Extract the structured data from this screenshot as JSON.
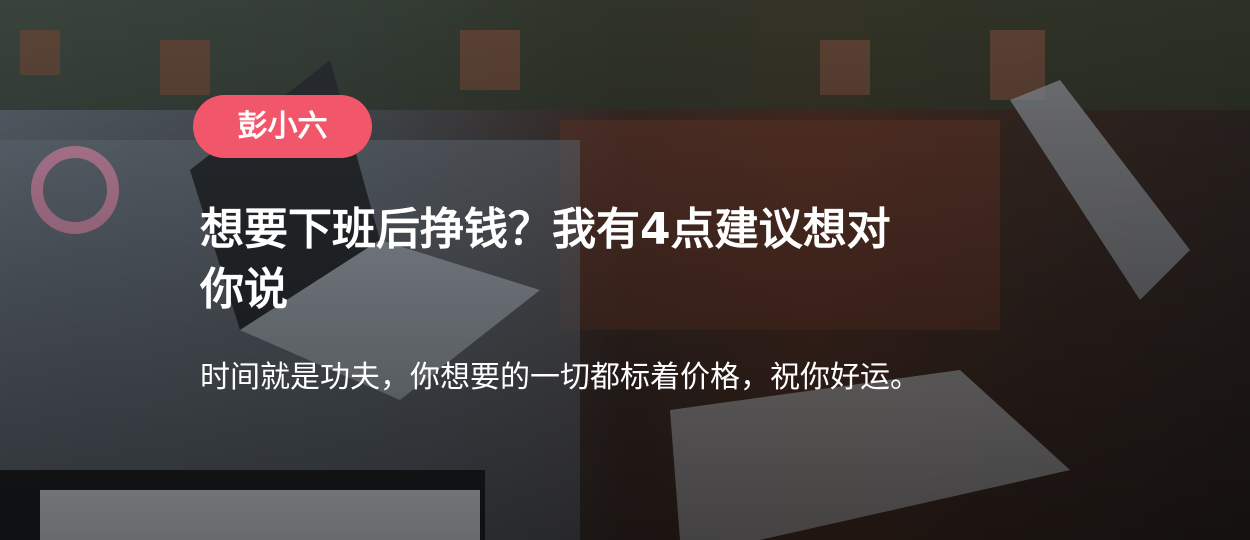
{
  "tag": "彭小六",
  "title": "想要下班后挣钱？我有4点建议想对你说",
  "subtitle": "时间就是功夫，你想要的一切都标着价格，祝你好运。"
}
